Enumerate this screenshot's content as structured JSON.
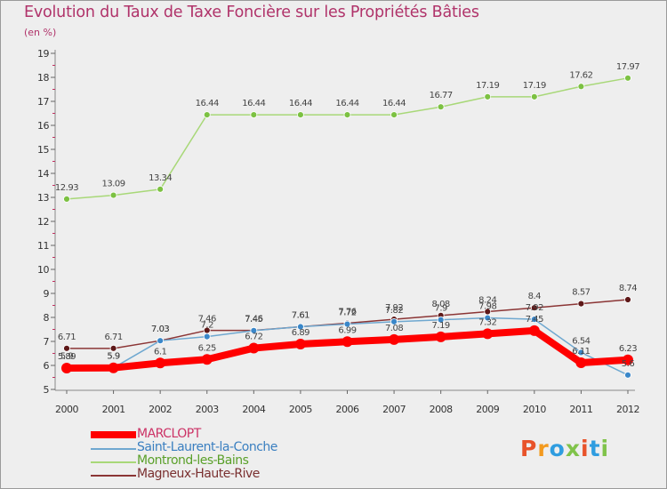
{
  "title": "Evolution du Taux de Taxe Foncière sur les Propriétés Bâties",
  "unit": "(en %)",
  "logo": {
    "text": "Proxiti",
    "colors": [
      "#e8532a",
      "#f39a1f",
      "#2f9de0",
      "#80c34a",
      "#e8532a",
      "#2f9de0",
      "#80c34a"
    ]
  },
  "chart_data": {
    "type": "line",
    "x": [
      "2000",
      "2001",
      "2002",
      "2003",
      "2004",
      "2005",
      "2006",
      "2007",
      "2008",
      "2009",
      "2010",
      "2011",
      "2012"
    ],
    "ylim": [
      5,
      19
    ],
    "yticks": [
      "5",
      "6",
      "7",
      "8",
      "9",
      "10",
      "11",
      "12",
      "13",
      "14",
      "15",
      "16",
      "17",
      "18",
      "19"
    ],
    "grid": false,
    "legend_position": "bottom-left",
    "series": [
      {
        "name": "MARCLOPT",
        "color": "#ff0000",
        "point_color": "#ff0000",
        "values": [
          5.89,
          5.9,
          6.1,
          6.25,
          6.72,
          6.89,
          6.99,
          7.08,
          7.19,
          7.32,
          7.45,
          6.11,
          6.23
        ],
        "labels": [
          "5.89",
          "5.9",
          "6.1",
          "6.25",
          "6.72",
          "6.89",
          "6.99",
          "7.08",
          "7.19",
          "7.32",
          "7.45",
          "6.11",
          "6.23"
        ]
      },
      {
        "name": "Saint-Laurent-la-Conche",
        "color": "#6fa8d0",
        "point_color": "#3a87c9",
        "values": [
          5.9,
          5.9,
          7.03,
          7.2,
          7.45,
          7.61,
          7.72,
          7.82,
          7.9,
          7.98,
          7.92,
          6.54,
          5.6
        ],
        "labels": [
          "5.9",
          "5.9",
          "7.03",
          "7.2",
          "7.45",
          "7.61",
          "7.72",
          "7.82",
          "7.9",
          "7.98",
          "7.92",
          "6.54",
          "5.6"
        ]
      },
      {
        "name": "Montrond-les-Bains",
        "color": "#a8d878",
        "point_color": "#7cc142",
        "values": [
          12.93,
          13.09,
          13.34,
          16.44,
          16.44,
          16.44,
          16.44,
          16.44,
          16.77,
          17.19,
          17.19,
          17.62,
          17.97
        ],
        "labels": [
          "12.93",
          "13.09",
          "13.34",
          "16.44",
          "16.44",
          "16.44",
          "16.44",
          "16.44",
          "16.77",
          "17.19",
          "17.19",
          "17.62",
          "17.97"
        ]
      },
      {
        "name": "Magneux-Haute-Rive",
        "color": "#8b3535",
        "point_color": "#5e1818",
        "values": [
          6.71,
          6.71,
          7.03,
          7.46,
          7.46,
          7.61,
          7.76,
          7.92,
          8.08,
          8.24,
          8.4,
          8.57,
          8.74
        ],
        "labels": [
          "6.71",
          "6.71",
          "7.03",
          "7.46",
          "7.46",
          "7.61",
          "7.76",
          "7.92",
          "8.08",
          "8.24",
          "8.4",
          "8.57",
          "8.74"
        ]
      }
    ]
  }
}
